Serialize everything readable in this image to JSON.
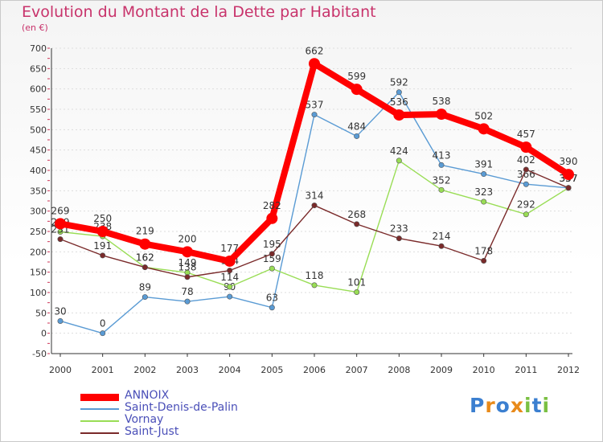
{
  "chart_data": {
    "type": "line",
    "title": "Evolution du Montant de la Dette par Habitant",
    "subtitle": "(en €)",
    "x": [
      "2000",
      "2001",
      "2002",
      "2003",
      "2004",
      "2005",
      "2006",
      "2007",
      "2008",
      "2009",
      "2010",
      "2011",
      "2012"
    ],
    "ylim": [
      -50,
      700
    ],
    "yticks": [
      -50,
      0,
      50,
      100,
      150,
      200,
      250,
      300,
      350,
      400,
      450,
      500,
      550,
      600,
      650,
      700
    ],
    "series": [
      {
        "name": "Saint-Denis-de-Palin",
        "color": "#5a9bd4",
        "values": [
          30,
          0,
          89,
          78,
          90,
          63,
          537,
          484,
          592,
          413,
          391,
          366,
          357
        ],
        "labels": [
          "30",
          "0",
          "89",
          "78",
          "90",
          "63",
          "537",
          "484",
          "592",
          "413",
          "391",
          "366",
          "357"
        ]
      },
      {
        "name": "Vornay",
        "color": "#99dd55",
        "values": [
          249,
          238,
          162,
          149,
          114,
          159,
          118,
          101,
          424,
          352,
          323,
          292,
          357
        ],
        "labels": [
          "249",
          "238",
          "162",
          "149",
          "114",
          "159",
          "118",
          "101",
          "424",
          "352",
          "323",
          "292",
          "357"
        ]
      },
      {
        "name": "Saint-Just",
        "color": "#7a2a2a",
        "values": [
          231,
          191,
          162,
          138,
          154,
          195,
          314,
          268,
          233,
          214,
          178,
          402,
          357
        ],
        "labels": [
          "231",
          "191",
          "162",
          "138",
          "154",
          "195",
          "314",
          "268",
          "233",
          "214",
          "178",
          "402",
          "357"
        ]
      },
      {
        "name": "ANNOIX",
        "color": "#ff0000",
        "values": [
          269,
          250,
          219,
          200,
          177,
          282,
          662,
          599,
          536,
          538,
          502,
          457,
          390
        ],
        "labels": [
          "269",
          "250",
          "219",
          "200",
          "177",
          "282",
          "662",
          "599",
          "536",
          "538",
          "502",
          "457",
          "390"
        ]
      }
    ],
    "legend": [
      "ANNOIX",
      "Saint-Denis-de-Palin",
      "Vornay",
      "Saint-Just"
    ]
  },
  "logo": {
    "text": "Proxiti",
    "letters": [
      "P",
      "r",
      "o",
      "x",
      "i",
      "t",
      "i"
    ],
    "colors": [
      "#3b7fd0",
      "#e88a1a",
      "#3b7fd0",
      "#e88a1a",
      "#7ac043",
      "#3b7fd0",
      "#7ac043"
    ]
  }
}
